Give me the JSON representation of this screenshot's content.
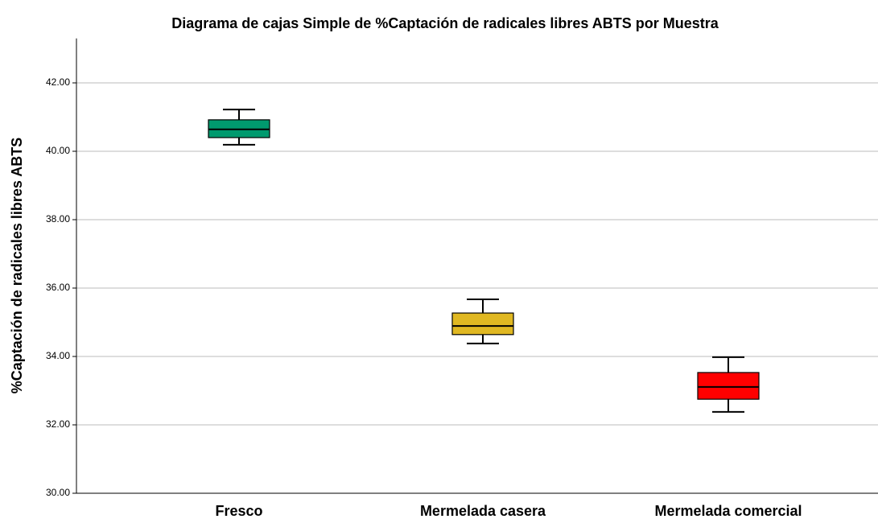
{
  "chart_data": {
    "type": "box",
    "title": "Diagrama de cajas Simple de %Captación de radicales libres ABTS por Muestra",
    "y_label": "%Captación de radicales libres ABTS",
    "categories": [
      "Fresco",
      "Mermelada casera",
      "Mermelada comercial"
    ],
    "colors": [
      "#009a6e",
      "#e0b822",
      "#ff0000"
    ],
    "min": [
      40.19,
      34.38,
      32.38
    ],
    "q1": [
      40.4,
      34.64,
      32.75
    ],
    "median": [
      40.64,
      34.89,
      33.11
    ],
    "q3": [
      40.92,
      35.27,
      33.53
    ],
    "max": [
      41.22,
      35.67,
      33.98
    ],
    "ylim": [
      30,
      43.3
    ],
    "yticks": [
      {
        "value": 30,
        "label": "30.00"
      },
      {
        "value": 32,
        "label": "32.00"
      },
      {
        "value": 34,
        "label": "34.00"
      },
      {
        "value": 36,
        "label": "36.00"
      },
      {
        "value": 38,
        "label": "38.00"
      },
      {
        "value": 40,
        "label": "40.00"
      },
      {
        "value": 42,
        "label": "42.00"
      }
    ],
    "grid": true
  }
}
